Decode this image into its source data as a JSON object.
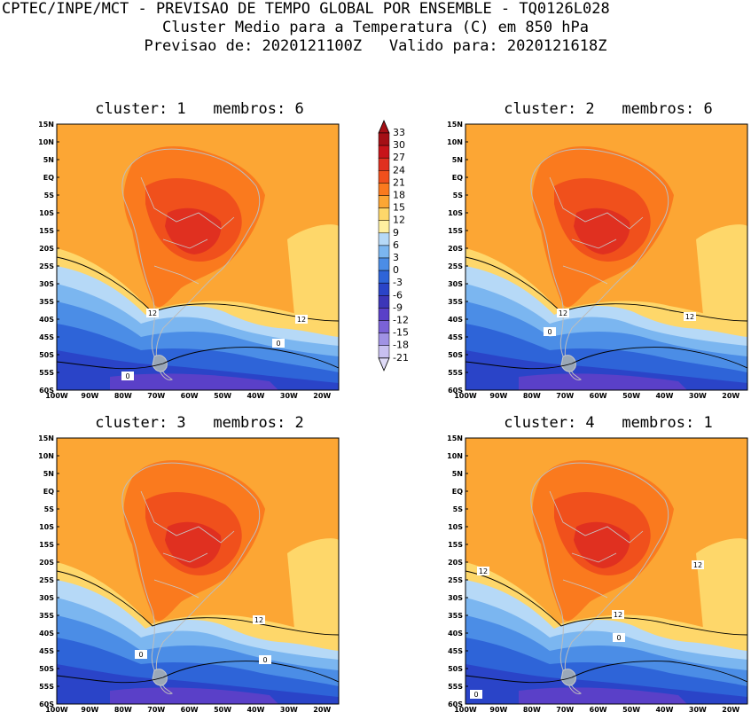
{
  "header": {
    "line1": "CPTEC/INPE/MCT - PREVISAO DE TEMPO GLOBAL POR ENSEMBLE - TQ0126L028",
    "line2": "Cluster Medio para a Temperatura (C) em 850 hPa",
    "line3": "Previsao de: 2020121100Z   Valido para: 2020121618Z"
  },
  "panels": [
    {
      "title": "cluster: 1   membros: 6",
      "contour_labels": [
        "12",
        "12",
        "0",
        "0"
      ]
    },
    {
      "title": "cluster: 2   membros: 6",
      "contour_labels": [
        "12",
        "12",
        "0"
      ]
    },
    {
      "title": "cluster: 3   membros: 2",
      "contour_labels": [
        "12",
        "0",
        "0"
      ]
    },
    {
      "title": "cluster: 4   membros: 1",
      "contour_labels": [
        "12",
        "12",
        "12",
        "0",
        "0"
      ]
    }
  ],
  "y_ticks": [
    "15N",
    "10N",
    "5N",
    "EQ",
    "5S",
    "10S",
    "15S",
    "20S",
    "25S",
    "30S",
    "35S",
    "40S",
    "45S",
    "50S",
    "55S",
    "60S"
  ],
  "x_ticks": [
    "100W",
    "90W",
    "80W",
    "70W",
    "60W",
    "50W",
    "40W",
    "30W",
    "20W"
  ],
  "colorbar": {
    "labels": [
      "33",
      "30",
      "27",
      "24",
      "21",
      "18",
      "15",
      "12",
      "9",
      "6",
      "3",
      "0",
      "-3",
      "-6",
      "-9",
      "-12",
      "-15",
      "-18",
      "-21"
    ],
    "colors": [
      "#a50f15",
      "#c8141a",
      "#e03020",
      "#f0501c",
      "#fa7a1e",
      "#fca634",
      "#fed76a",
      "#fff0a0",
      "#b6d9f7",
      "#7bb6f0",
      "#4b8de6",
      "#2e64d8",
      "#2a44c8",
      "#3c36b8",
      "#5a40c8",
      "#7a62d6",
      "#a092e4",
      "#c8c0f0",
      "#e0dcf8"
    ]
  }
}
